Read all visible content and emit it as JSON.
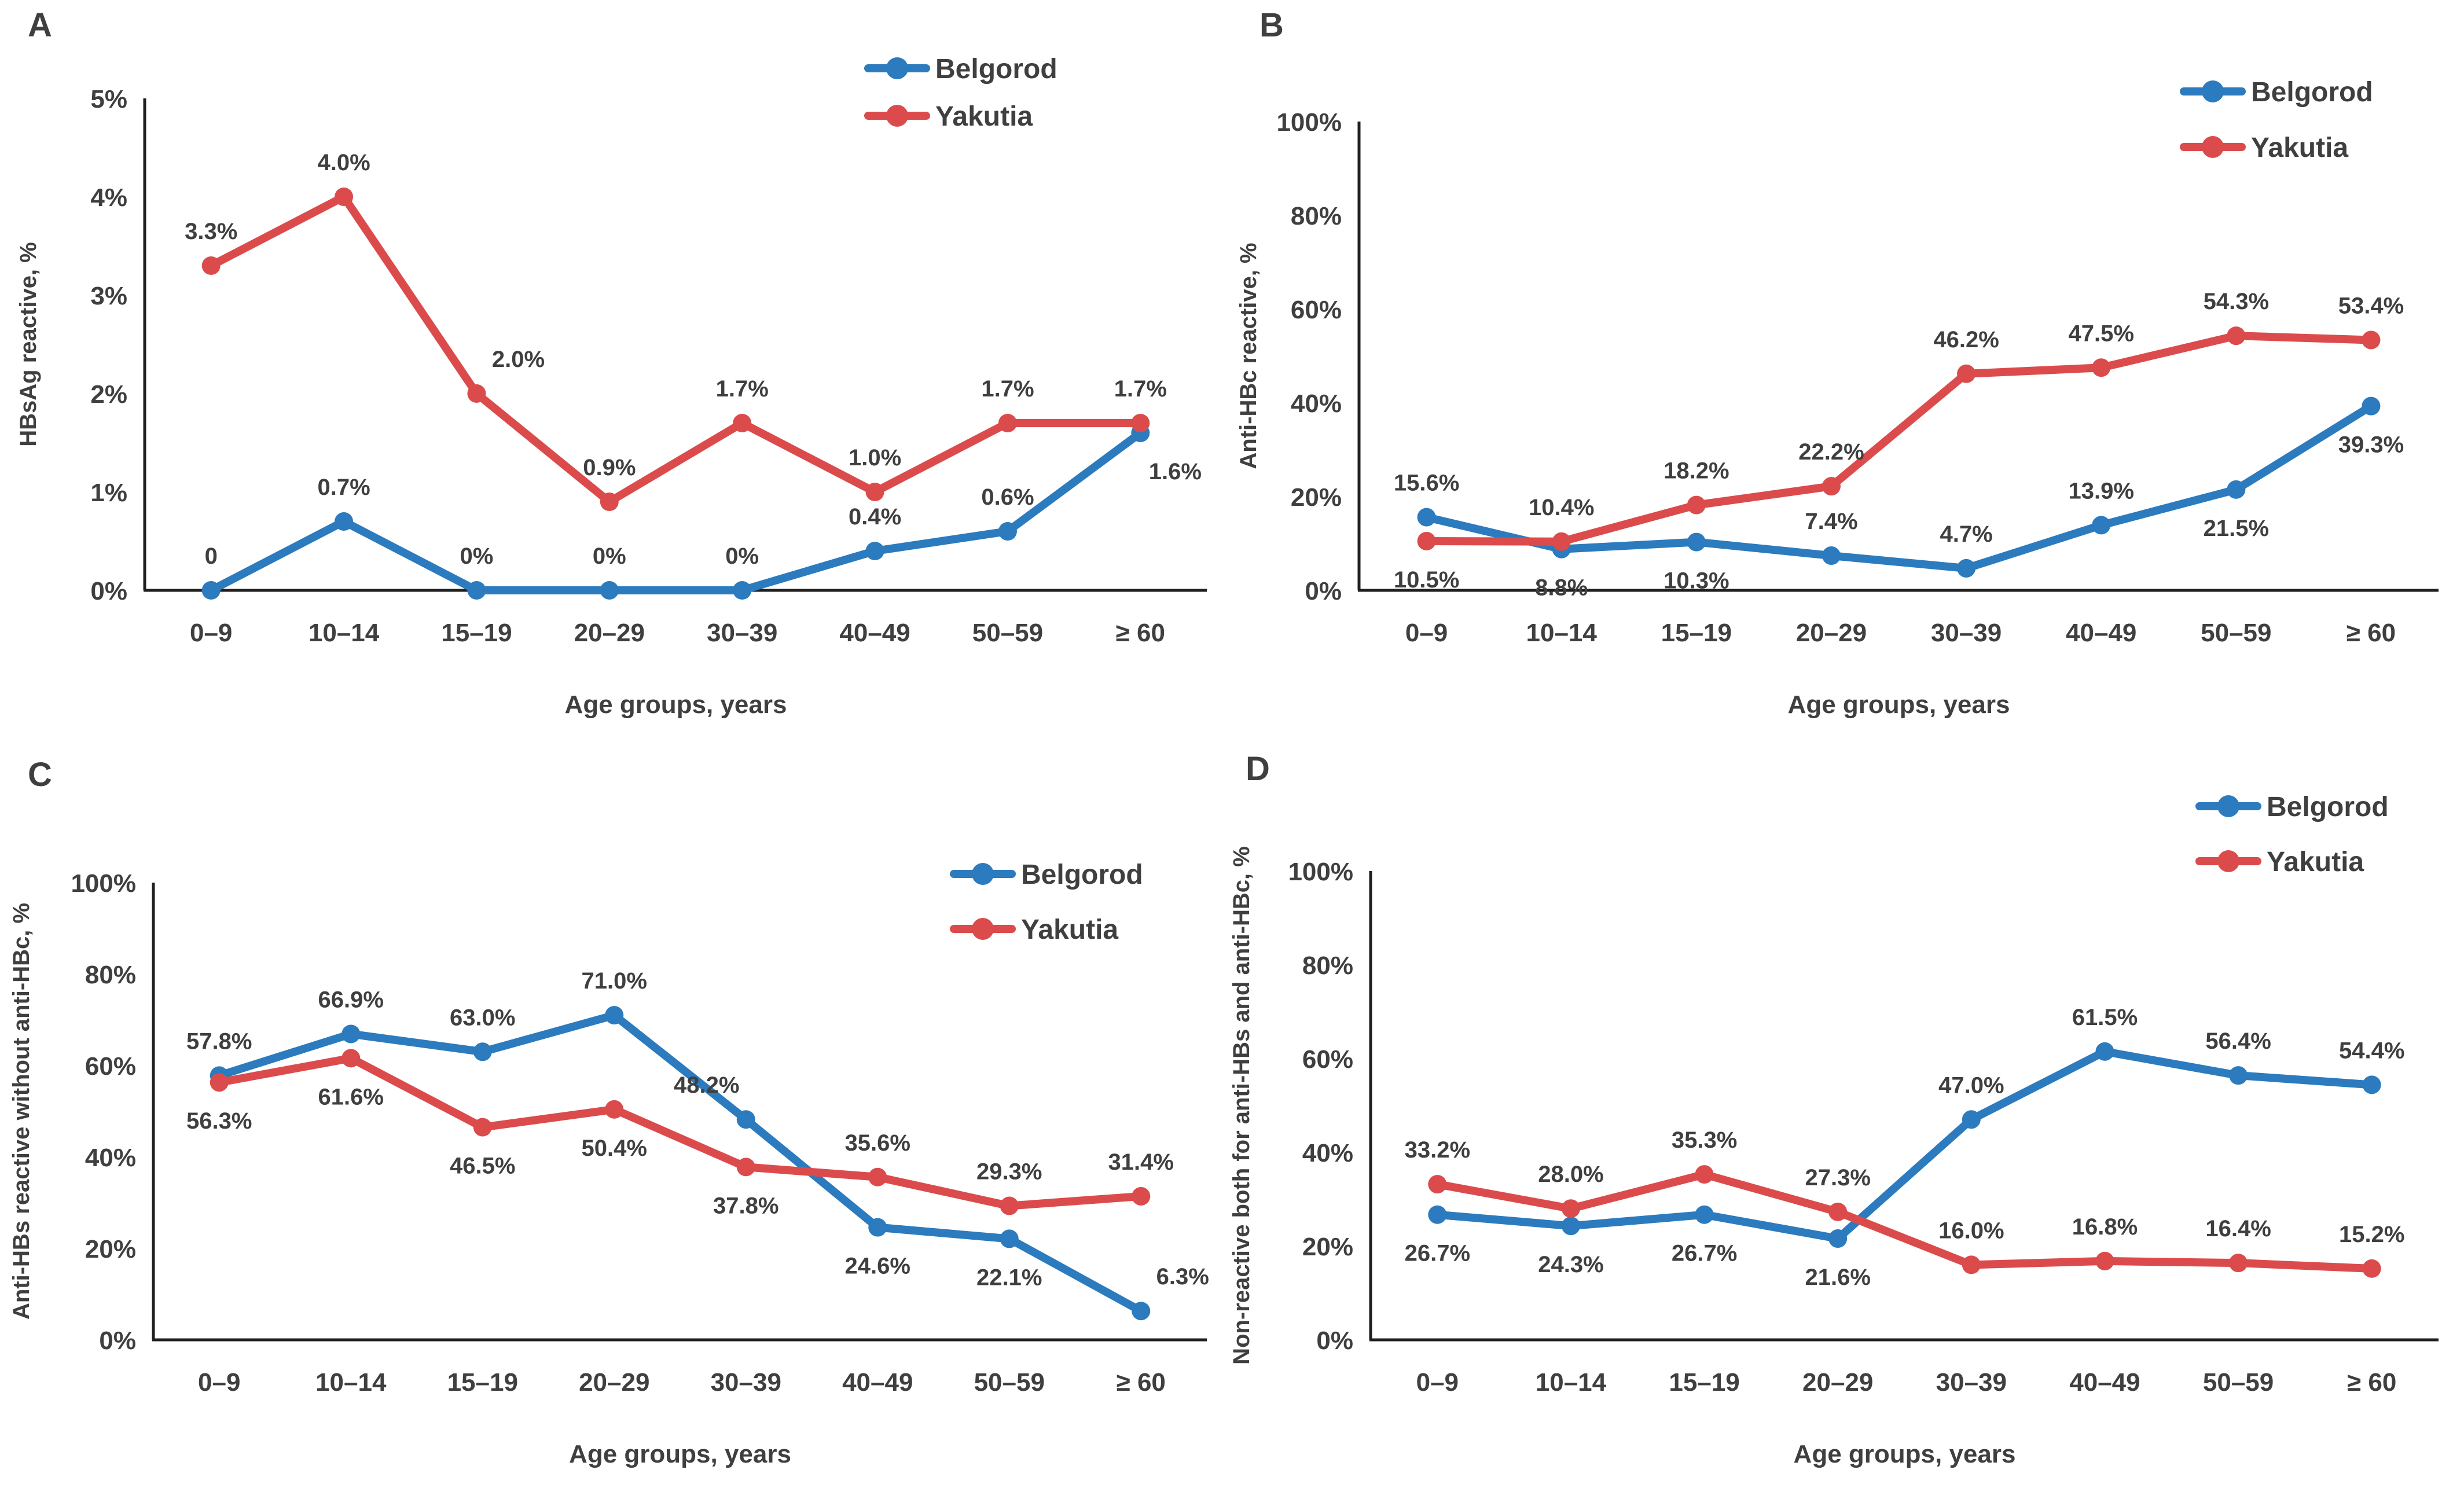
{
  "colors": {
    "belgorod": "#2B7BBE",
    "yakutia": "#DC4B4C",
    "text": "#3F3F3F",
    "axis": "#1F1F1F",
    "background": "#FFFFFF"
  },
  "chart_data": [
    {
      "panel_label": "A",
      "type": "line",
      "ylabel": "HBsAg reactive, %",
      "xlabel": "Age groups, years",
      "ylim": [
        0,
        5
      ],
      "yticks": [
        "0%",
        "1%",
        "2%",
        "3%",
        "4%",
        "5%"
      ],
      "categories": [
        "0–9",
        "10–14",
        "15–19",
        "20–29",
        "30–39",
        "40–49",
        "50–59",
        "≥ 60"
      ],
      "grid": false,
      "legend_position": "top-right",
      "series": [
        {
          "name": "Belgorod",
          "color": "#2B7BBE",
          "values": [
            0,
            0.7,
            0,
            0,
            0,
            0.4,
            0.6,
            1.6
          ],
          "labels": [
            "0",
            "0.7%",
            "0%",
            "0%",
            "0%",
            "0.4%",
            "0.6%",
            "1.6%"
          ],
          "label_pos": [
            "a",
            "a",
            "a",
            "a",
            "a",
            "a",
            "a",
            "br"
          ]
        },
        {
          "name": "Yakutia",
          "color": "#DC4B4C",
          "values": [
            3.3,
            4.0,
            2.0,
            0.9,
            1.7,
            1.0,
            1.7,
            1.7
          ],
          "labels": [
            "3.3%",
            "4.0%",
            "2.0%",
            "0.9%",
            "1.7%",
            "1.0%",
            "1.7%",
            "1.7%"
          ],
          "label_pos": [
            "a",
            "a",
            "ar",
            "a",
            "a",
            "a",
            "a",
            "a"
          ]
        }
      ]
    },
    {
      "panel_label": "B",
      "type": "line",
      "ylabel": "Anti-HBc reactive, %",
      "xlabel": "Age groups, years",
      "ylim": [
        0,
        100
      ],
      "yticks": [
        "0%",
        "20%",
        "40%",
        "60%",
        "80%",
        "100%"
      ],
      "categories": [
        "0–9",
        "10–14",
        "15–19",
        "20–29",
        "30–39",
        "40–49",
        "50–59",
        "≥ 60"
      ],
      "grid": false,
      "legend_position": "top-right",
      "series": [
        {
          "name": "Belgorod",
          "color": "#2B7BBE",
          "values": [
            15.6,
            8.8,
            10.3,
            7.4,
            4.7,
            13.9,
            21.5,
            39.3
          ],
          "labels": [
            "15.6%",
            "8.8%",
            "10.3%",
            "7.4%",
            "4.7%",
            "13.9%",
            "21.5%",
            "39.3%"
          ],
          "label_pos": [
            "a",
            "b",
            "b",
            "a",
            "a",
            "a",
            "b",
            "b"
          ]
        },
        {
          "name": "Yakutia",
          "color": "#DC4B4C",
          "values": [
            10.5,
            10.4,
            18.2,
            22.2,
            46.2,
            47.5,
            54.3,
            53.4
          ],
          "labels": [
            "10.5%",
            "10.4%",
            "18.2%",
            "22.2%",
            "46.2%",
            "47.5%",
            "54.3%",
            "53.4%"
          ],
          "label_pos": [
            "b",
            "a",
            "a",
            "a",
            "a",
            "a",
            "a",
            "a"
          ]
        }
      ]
    },
    {
      "panel_label": "C",
      "type": "line",
      "ylabel": "Anti-HBs reactive without anti-HBc, %",
      "xlabel": "Age groups, years",
      "ylim": [
        0,
        100
      ],
      "yticks": [
        "0%",
        "20%",
        "40%",
        "60%",
        "80%",
        "100%"
      ],
      "categories": [
        "0–9",
        "10–14",
        "15–19",
        "20–29",
        "30–39",
        "40–49",
        "50–59",
        "≥ 60"
      ],
      "grid": false,
      "legend_position": "top-right-inset",
      "series": [
        {
          "name": "Belgorod",
          "color": "#2B7BBE",
          "values": [
            57.8,
            66.9,
            63.0,
            71.0,
            48.2,
            24.6,
            22.1,
            6.3
          ],
          "labels": [
            "57.8%",
            "66.9%",
            "63.0%",
            "71.0%",
            "48.2%",
            "24.6%",
            "22.1%",
            "6.3%"
          ],
          "label_pos": [
            "a",
            "a",
            "a",
            "a",
            "al",
            "b",
            "b",
            "ar"
          ]
        },
        {
          "name": "Yakutia",
          "color": "#DC4B4C",
          "values": [
            56.3,
            61.6,
            46.5,
            50.4,
            37.8,
            35.6,
            29.3,
            31.4
          ],
          "labels": [
            "56.3%",
            "61.6%",
            "46.5%",
            "50.4%",
            "37.8%",
            "35.6%",
            "29.3%",
            "31.4%"
          ],
          "label_pos": [
            "b",
            "b",
            "b",
            "b",
            "b",
            "a",
            "a",
            "a"
          ]
        }
      ]
    },
    {
      "panel_label": "D",
      "type": "line",
      "ylabel": "Non-reactive both for anti-HBs and anti-HBc, %",
      "xlabel": "Age groups, years",
      "ylim": [
        0,
        100
      ],
      "yticks": [
        "0%",
        "20%",
        "40%",
        "60%",
        "80%",
        "100%"
      ],
      "categories": [
        "0–9",
        "10–14",
        "15–19",
        "20–29",
        "30–39",
        "40–49",
        "50–59",
        "≥ 60"
      ],
      "grid": false,
      "legend_position": "top-right",
      "series": [
        {
          "name": "Belgorod",
          "color": "#2B7BBE",
          "values": [
            26.7,
            24.3,
            26.7,
            21.6,
            47.0,
            61.5,
            56.4,
            54.4
          ],
          "labels": [
            "26.7%",
            "24.3%",
            "26.7%",
            "21.6%",
            "47.0%",
            "61.5%",
            "56.4%",
            "54.4%"
          ],
          "label_pos": [
            "b",
            "b",
            "b",
            "b",
            "a",
            "a",
            "a",
            "a"
          ]
        },
        {
          "name": "Yakutia",
          "color": "#DC4B4C",
          "values": [
            33.2,
            28.0,
            35.3,
            27.3,
            16.0,
            16.8,
            16.4,
            15.2
          ],
          "labels": [
            "33.2%",
            "28.0%",
            "35.3%",
            "27.3%",
            "16.0%",
            "16.8%",
            "16.4%",
            "15.2%"
          ],
          "label_pos": [
            "a",
            "a",
            "a",
            "a",
            "a",
            "a",
            "a",
            "a"
          ]
        }
      ]
    }
  ]
}
